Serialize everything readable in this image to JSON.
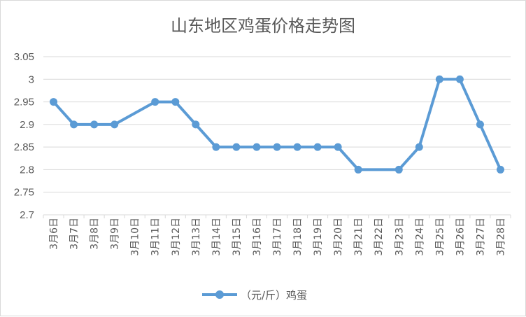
{
  "chart_data": {
    "type": "line",
    "title": "山东地区鸡蛋价格走势图",
    "xlabel": "",
    "ylabel": "",
    "categories": [
      "3月6日",
      "3月7日",
      "3月8日",
      "3月9日",
      "3月10日",
      "3月11日",
      "3月12日",
      "3月13日",
      "3月14日",
      "3月15日",
      "3月16日",
      "3月17日",
      "3月18日",
      "3月19日",
      "3月20日",
      "3月21日",
      "3月22日",
      "3月23日",
      "3月24日",
      "3月25日",
      "3月26日",
      "3月27日",
      "3月28日"
    ],
    "series": [
      {
        "name": "（元/斤）鸡蛋",
        "color": "#5b9bd5",
        "values": [
          2.95,
          2.9,
          2.9,
          2.9,
          null,
          2.95,
          2.95,
          2.9,
          2.85,
          2.85,
          2.85,
          2.85,
          2.85,
          2.85,
          2.85,
          2.8,
          null,
          2.8,
          2.85,
          3.0,
          3.0,
          2.9,
          2.8
        ]
      }
    ],
    "ylim": [
      2.7,
      3.05
    ],
    "yticks": [
      "3.05",
      "3",
      "2.95",
      "2.9",
      "2.85",
      "2.8",
      "2.75",
      "2.7"
    ],
    "grid": true,
    "legend": "bottom"
  }
}
